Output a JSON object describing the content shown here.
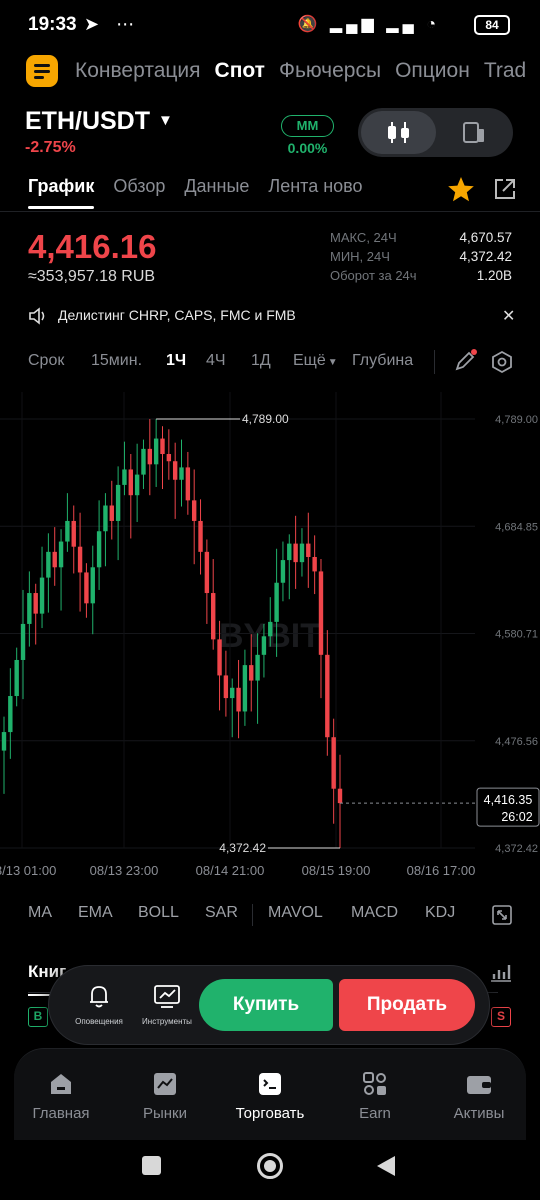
{
  "status_bar": {
    "time": "19:33",
    "battery": "84"
  },
  "top_nav": {
    "items": [
      "Конвертация",
      "Спот",
      "Фьючерсы",
      "Опцион",
      "Trad"
    ],
    "active_index": 1
  },
  "pair": {
    "symbol": "ETH/USDT",
    "change": "-2.75%",
    "mm_label": "MM",
    "mm_value": "0.00%"
  },
  "tabs": {
    "items": [
      "График",
      "Обзор",
      "Данные",
      "Лента ново"
    ],
    "active_index": 0
  },
  "price": {
    "last": "4,416.16",
    "rub": "≈353,957.18 RUB",
    "stats": [
      {
        "label": "МАКС, 24Ч",
        "value": "4,670.57"
      },
      {
        "label": "МИН, 24Ч",
        "value": "4,372.42"
      },
      {
        "label": "Оборот за 24ч",
        "value": "1.20B"
      }
    ]
  },
  "notice": {
    "text": "Делистинг CHRP, CAPS, FMC и FMB"
  },
  "intervals": {
    "items": [
      "Срок",
      "15мин.",
      "1Ч",
      "4Ч",
      "1Д",
      "Ещё",
      "Глубина"
    ],
    "active_index": 2
  },
  "chart_data": {
    "type": "candlestick",
    "y_ticks": [
      "4,789.00",
      "4,684.85",
      "4,580.71",
      "4,476.56",
      "4,372.42"
    ],
    "ylim": [
      4372.42,
      4789.0
    ],
    "x_ticks": [
      "08/13 01:00",
      "08/13 23:00",
      "08/14 21:00",
      "08/15 19:00",
      "08/16 17:00"
    ],
    "high_marker": "4,789.00",
    "low_marker": "4,372.42",
    "current_price": "4,416.35",
    "countdown": "26:02",
    "watermark": "BYBIT",
    "colors": {
      "up": "#20b26c",
      "down": "#ef454a"
    },
    "closes": [
      4485,
      4520,
      4555,
      4590,
      4620,
      4600,
      4635,
      4660,
      4645,
      4670,
      4690,
      4665,
      4640,
      4610,
      4645,
      4680,
      4705,
      4690,
      4725,
      4740,
      4715,
      4735,
      4760,
      4745,
      4770,
      4755,
      4748,
      4730,
      4742,
      4710,
      4690,
      4660,
      4620,
      4575,
      4540,
      4518,
      4528,
      4505,
      4550,
      4535,
      4560,
      4578,
      4592,
      4630,
      4652,
      4668,
      4650,
      4668,
      4655,
      4641,
      4560,
      4480,
      4430,
      4416
    ]
  },
  "indicators": [
    "MA",
    "EMA",
    "BOLL",
    "SAR",
    "MAVOL",
    "MACD",
    "KDJ"
  ],
  "order_book": {
    "label": "Книг",
    "buy_badge": "B",
    "sell_badge": "S"
  },
  "action_bar": {
    "alerts_label": "Оповещения",
    "tools_label": "Инструменты",
    "buy_label": "Купить",
    "sell_label": "Продать"
  },
  "bottom_nav": {
    "items": [
      "Главная",
      "Рынки",
      "Торговать",
      "Earn",
      "Активы"
    ],
    "active_index": 2
  }
}
